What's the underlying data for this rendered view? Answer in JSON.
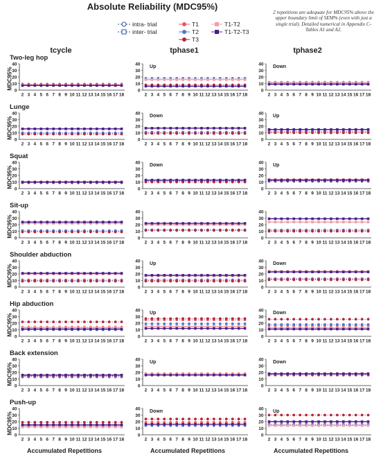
{
  "title": "Absolute Reliability (MDC95%)",
  "note": "2 repetitions are adequate for MDC95% above the upper boundary limit of SEM% (even with just a single trial). Detailed numerical in Appendix C-Tables A1 and A2.",
  "legend": [
    {
      "label": "intra- trial",
      "key": "intra"
    },
    {
      "label": "inter- trial",
      "key": "inter"
    },
    {
      "label": "T1",
      "key": "T1"
    },
    {
      "label": "T2",
      "key": "T2"
    },
    {
      "label": "T3",
      "key": "T3"
    },
    {
      "label": "T1-T2",
      "key": "T1T2"
    },
    {
      "label": "T1-T2-T3",
      "key": "T1T2T3"
    }
  ],
  "columns": [
    "tcycle",
    "tphase1",
    "tphase2"
  ],
  "rows": [
    "Two-leg hop",
    "Lunge",
    "Squat",
    "Sit-up",
    "Shoulder abduction",
    "Hip abduction",
    "Back extension",
    "Push-up"
  ],
  "ylabel": "MDC95%",
  "xlabel": "Accumulated Repetitions",
  "colors": {
    "T1": "#e8595f",
    "T2": "#4a78d6",
    "T3": "#b5263f",
    "T1T2": "#f0a0a8",
    "T1T2T3": "#4b1f8c",
    "intra_edge": "#2d4f9e"
  },
  "chart_data": {
    "type": "line",
    "x_ticks": [
      2,
      3,
      4,
      5,
      6,
      7,
      8,
      9,
      10,
      11,
      12,
      13,
      14,
      15,
      16,
      17,
      18
    ],
    "y_ticks": [
      0,
      10,
      20,
      30,
      40
    ],
    "ylim": [
      0,
      40
    ],
    "series_order": [
      "T1",
      "T2",
      "T3",
      "T1T2",
      "T1T2T3"
    ],
    "panels": [
      {
        "row": "Two-leg hop",
        "col": "tcycle",
        "dir": "",
        "T1": 9,
        "T2": 8,
        "T3": 9,
        "T1T2": 8,
        "T1T2T3": 7
      },
      {
        "row": "Two-leg hop",
        "col": "tphase1",
        "dir": "Up",
        "T1": 16,
        "T2": 18,
        "T3": 8,
        "T1T2": 16,
        "T1T2T3": 6
      },
      {
        "row": "Two-leg hop",
        "col": "tphase2",
        "dir": "Down",
        "T1": 11,
        "T2": 12,
        "T3": 10,
        "T1T2": 11,
        "T1T2T3": 9
      },
      {
        "row": "Lunge",
        "col": "tcycle",
        "dir": "",
        "T1": 9,
        "T2": 10,
        "T3": 8,
        "T1T2": 16,
        "T1T2T3": 16
      },
      {
        "row": "Lunge",
        "col": "tphase1",
        "dir": "Down",
        "T1": 10,
        "T2": 11,
        "T3": 9,
        "T1T2": 17,
        "T1T2T3": 17
      },
      {
        "row": "Lunge",
        "col": "tphase2",
        "dir": "Up",
        "T1": 11,
        "T2": 12,
        "T3": 10,
        "T1T2": 15,
        "T1T2T3": 15
      },
      {
        "row": "Squat",
        "col": "tcycle",
        "dir": "",
        "T1": 9,
        "T2": 10,
        "T3": 9,
        "T1T2": 10,
        "T1T2T3": 10
      },
      {
        "row": "Squat",
        "col": "tphase1",
        "dir": "Down",
        "T1": 11,
        "T2": 12,
        "T3": 10,
        "T1T2": 13,
        "T1T2T3": 13
      },
      {
        "row": "Squat",
        "col": "tphase2",
        "dir": "Up",
        "T1": 12,
        "T2": 11,
        "T3": 12,
        "T1T2": 14,
        "T1T2T3": 13
      },
      {
        "row": "Sit-up",
        "col": "tcycle",
        "dir": "",
        "T1": 10,
        "T2": 11,
        "T3": 9,
        "T1T2": 22,
        "T1T2T3": 24
      },
      {
        "row": "Sit-up",
        "col": "tphase1",
        "dir": "",
        "T1": 12,
        "T2": 11,
        "T3": 12,
        "T1T2": 20,
        "T1T2T3": 22
      },
      {
        "row": "Sit-up",
        "col": "tphase2",
        "dir": "",
        "T1": 11,
        "T2": 12,
        "T3": 10,
        "T1T2": 24,
        "T1T2T3": 29
      },
      {
        "row": "Shoulder abduction",
        "col": "tcycle",
        "dir": "",
        "T1": 11,
        "T2": 10,
        "T3": 9,
        "T1T2": 20,
        "T1T2T3": 21
      },
      {
        "row": "Shoulder abduction",
        "col": "tphase1",
        "dir": "Up",
        "T1": 10,
        "T2": 11,
        "T3": 9,
        "T1T2": 17,
        "T1T2T3": 18
      },
      {
        "row": "Shoulder abduction",
        "col": "tphase2",
        "dir": "Down",
        "T1": 13,
        "T2": 12,
        "T3": 11,
        "T1T2": 24,
        "T1T2T3": 23
      },
      {
        "row": "Hip abduction",
        "col": "tcycle",
        "dir": "",
        "T1": 14,
        "T2": 10,
        "T3": 22,
        "T1T2": 13,
        "T1T2T3": 11
      },
      {
        "row": "Hip abduction",
        "col": "tphase1",
        "dir": "Up",
        "T1": 25,
        "T2": 19,
        "T3": 27,
        "T1T2": 15,
        "T1T2T3": 12
      },
      {
        "row": "Hip abduction",
        "col": "tphase2",
        "dir": "Down",
        "T1": 16,
        "T2": 18,
        "T3": 26,
        "T1T2": 13,
        "T1T2T3": 11
      },
      {
        "row": "Back extension",
        "col": "tcycle",
        "dir": "",
        "T1": 14,
        "T2": 13,
        "T3": 15,
        "T1T2": 16,
        "T1T2T3": 16
      },
      {
        "row": "Back extension",
        "col": "tphase1",
        "dir": "Up",
        "T1": 18,
        "T2": 16,
        "T3": 17,
        "T1T2": 17,
        "T1T2T3": 16
      },
      {
        "row": "Back extension",
        "col": "tphase2",
        "dir": "Down",
        "T1": 16,
        "T2": 17,
        "T3": 16,
        "T1T2": 18,
        "T1T2T3": 18
      },
      {
        "row": "Push-up",
        "col": "tcycle",
        "dir": "",
        "T1": 14,
        "T2": 12,
        "T3": 19,
        "T1T2": 12,
        "T1T2T3": 15
      },
      {
        "row": "Push-up",
        "col": "tphase1",
        "dir": "Down",
        "T1": 19,
        "T2": 14,
        "T3": 24,
        "T1T2": 16,
        "T1T2T3": 16
      },
      {
        "row": "Push-up",
        "col": "tphase2",
        "dir": "Up",
        "T1": 15,
        "T2": 16,
        "T3": 30,
        "T1T2": 14,
        "T1T2T3": 20
      }
    ]
  }
}
